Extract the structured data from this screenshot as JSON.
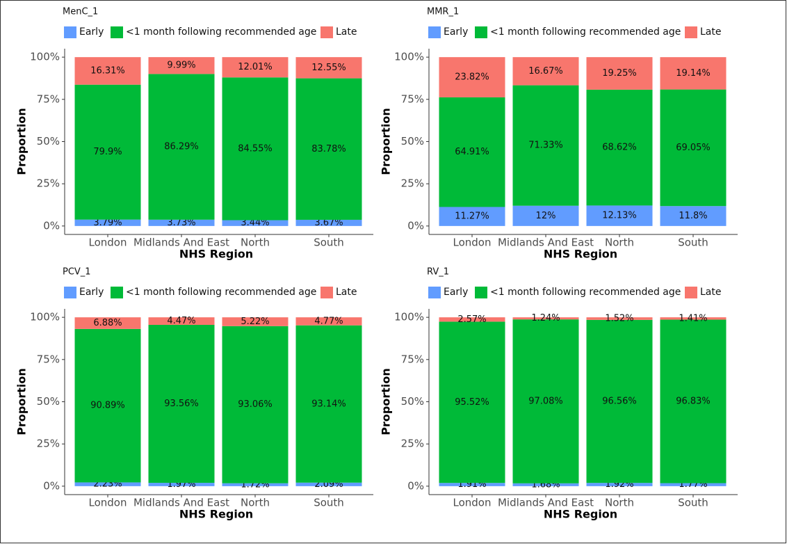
{
  "chart_data": [
    {
      "type": "bar",
      "stacked": true,
      "title": "MenC_1",
      "xlabel": "NHS Region",
      "ylabel": "Proportion",
      "categories": [
        "London",
        "Midlands And East",
        "North",
        "South"
      ],
      "series": [
        {
          "name": "Early",
          "color": "#619CFF",
          "values": [
            3.79,
            3.73,
            3.44,
            3.67
          ],
          "value_labels": [
            "3.79%",
            "3.73%",
            "3.44%",
            "3.67%"
          ]
        },
        {
          "name": "<1 month following recommended age",
          "color": "#00BA38",
          "values": [
            79.9,
            86.29,
            84.55,
            83.78
          ],
          "value_labels": [
            "79.9%",
            "86.29%",
            "84.55%",
            "83.78%"
          ]
        },
        {
          "name": "Late",
          "color": "#F8766D",
          "values": [
            16.31,
            9.99,
            12.01,
            12.55
          ],
          "value_labels": [
            "16.31%",
            "9.99%",
            "12.01%",
            "12.55%"
          ]
        }
      ],
      "ylim": [
        -5,
        105
      ],
      "yticks": [
        {
          "value": 0,
          "label": "0%"
        },
        {
          "value": 25,
          "label": "25%"
        },
        {
          "value": 50,
          "label": "50%"
        },
        {
          "value": 75,
          "label": "75%"
        },
        {
          "value": 100,
          "label": "100%"
        }
      ]
    },
    {
      "type": "bar",
      "stacked": true,
      "title": "MMR_1",
      "xlabel": "NHS Region",
      "ylabel": "Proportion",
      "categories": [
        "London",
        "Midlands And East",
        "North",
        "South"
      ],
      "series": [
        {
          "name": "Early",
          "color": "#619CFF",
          "values": [
            11.27,
            12,
            12.13,
            11.8
          ],
          "value_labels": [
            "11.27%",
            "12%",
            "12.13%",
            "11.8%"
          ]
        },
        {
          "name": "<1 month following recommended age",
          "color": "#00BA38",
          "values": [
            64.91,
            71.33,
            68.62,
            69.05
          ],
          "value_labels": [
            "64.91%",
            "71.33%",
            "68.62%",
            "69.05%"
          ]
        },
        {
          "name": "Late",
          "color": "#F8766D",
          "values": [
            23.82,
            16.67,
            19.25,
            19.14
          ],
          "value_labels": [
            "23.82%",
            "16.67%",
            "19.25%",
            "19.14%"
          ]
        }
      ],
      "ylim": [
        -5,
        105
      ],
      "yticks": [
        {
          "value": 0,
          "label": "0%"
        },
        {
          "value": 25,
          "label": "25%"
        },
        {
          "value": 50,
          "label": "50%"
        },
        {
          "value": 75,
          "label": "75%"
        },
        {
          "value": 100,
          "label": "100%"
        }
      ]
    },
    {
      "type": "bar",
      "stacked": true,
      "title": "PCV_1",
      "xlabel": "NHS Region",
      "ylabel": "Proportion",
      "categories": [
        "London",
        "Midlands And East",
        "North",
        "South"
      ],
      "series": [
        {
          "name": "Early",
          "color": "#619CFF",
          "values": [
            2.23,
            1.97,
            1.72,
            2.09
          ],
          "value_labels": [
            "2.23%",
            "1.97%",
            "1.72%",
            "2.09%"
          ]
        },
        {
          "name": "<1 month following recommended age",
          "color": "#00BA38",
          "values": [
            90.89,
            93.56,
            93.06,
            93.14
          ],
          "value_labels": [
            "90.89%",
            "93.56%",
            "93.06%",
            "93.14%"
          ]
        },
        {
          "name": "Late",
          "color": "#F8766D",
          "values": [
            6.88,
            4.47,
            5.22,
            4.77
          ],
          "value_labels": [
            "6.88%",
            "4.47%",
            "5.22%",
            "4.77%"
          ]
        }
      ],
      "ylim": [
        -5,
        105
      ],
      "yticks": [
        {
          "value": 0,
          "label": "0%"
        },
        {
          "value": 25,
          "label": "25%"
        },
        {
          "value": 50,
          "label": "50%"
        },
        {
          "value": 75,
          "label": "75%"
        },
        {
          "value": 100,
          "label": "100%"
        }
      ]
    },
    {
      "type": "bar",
      "stacked": true,
      "title": "RV_1",
      "xlabel": "NHS Region",
      "ylabel": "Proportion",
      "categories": [
        "London",
        "Midlands And East",
        "North",
        "South"
      ],
      "series": [
        {
          "name": "Early",
          "color": "#619CFF",
          "values": [
            1.91,
            1.68,
            1.92,
            1.77
          ],
          "value_labels": [
            "1.91%",
            "1.68%",
            "1.92%",
            "1.77%"
          ]
        },
        {
          "name": "<1 month following recommended age",
          "color": "#00BA38",
          "values": [
            95.52,
            97.08,
            96.56,
            96.83
          ],
          "value_labels": [
            "95.52%",
            "97.08%",
            "96.56%",
            "96.83%"
          ]
        },
        {
          "name": "Late",
          "color": "#F8766D",
          "values": [
            2.57,
            1.24,
            1.52,
            1.41
          ],
          "value_labels": [
            "2.57%",
            "1.24%",
            "1.52%",
            "1.41%"
          ]
        }
      ],
      "ylim": [
        -5,
        105
      ],
      "yticks": [
        {
          "value": 0,
          "label": "0%"
        },
        {
          "value": 25,
          "label": "25%"
        },
        {
          "value": 50,
          "label": "50%"
        },
        {
          "value": 75,
          "label": "75%"
        },
        {
          "value": 100,
          "label": "100%"
        }
      ]
    }
  ]
}
